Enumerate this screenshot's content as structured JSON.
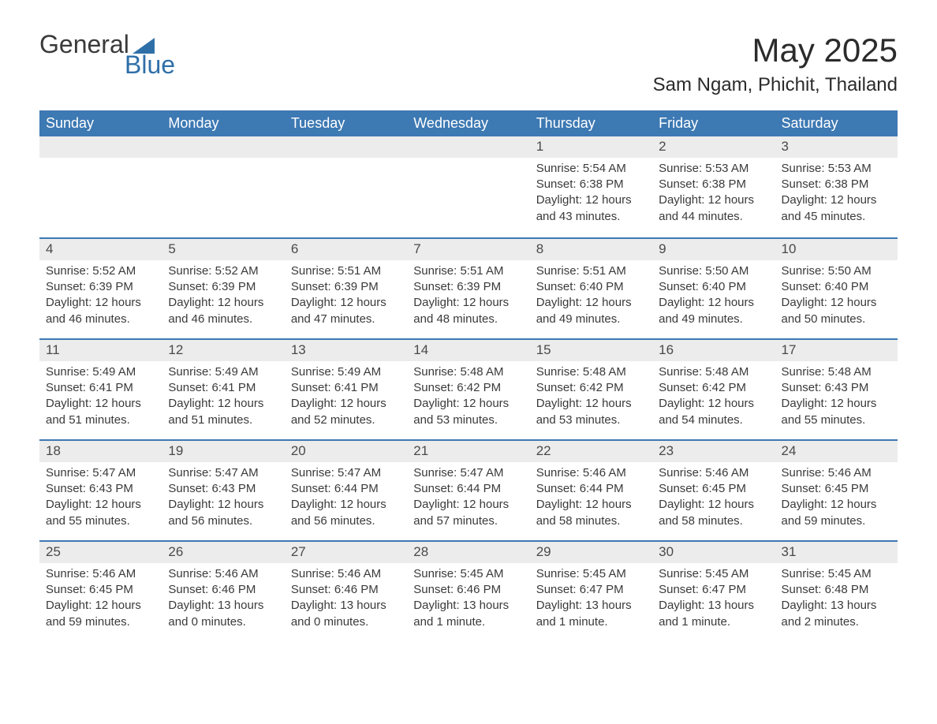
{
  "logo": {
    "word1": "General",
    "word2": "Blue"
  },
  "title": "May 2025",
  "location": "Sam Ngam, Phichit, Thailand",
  "colors": {
    "header_bg": "#3d79b3",
    "daynum_bg": "#ececec",
    "text": "#3a3a3a",
    "accent": "#2f6fa8",
    "page_bg": "#ffffff"
  },
  "day_names": [
    "Sunday",
    "Monday",
    "Tuesday",
    "Wednesday",
    "Thursday",
    "Friday",
    "Saturday"
  ],
  "weeks": [
    [
      {
        "blank": true
      },
      {
        "blank": true
      },
      {
        "blank": true
      },
      {
        "blank": true
      },
      {
        "n": "1",
        "sunrise": "5:54 AM",
        "sunset": "6:38 PM",
        "daylight": "12 hours and 43 minutes."
      },
      {
        "n": "2",
        "sunrise": "5:53 AM",
        "sunset": "6:38 PM",
        "daylight": "12 hours and 44 minutes."
      },
      {
        "n": "3",
        "sunrise": "5:53 AM",
        "sunset": "6:38 PM",
        "daylight": "12 hours and 45 minutes."
      }
    ],
    [
      {
        "n": "4",
        "sunrise": "5:52 AM",
        "sunset": "6:39 PM",
        "daylight": "12 hours and 46 minutes."
      },
      {
        "n": "5",
        "sunrise": "5:52 AM",
        "sunset": "6:39 PM",
        "daylight": "12 hours and 46 minutes."
      },
      {
        "n": "6",
        "sunrise": "5:51 AM",
        "sunset": "6:39 PM",
        "daylight": "12 hours and 47 minutes."
      },
      {
        "n": "7",
        "sunrise": "5:51 AM",
        "sunset": "6:39 PM",
        "daylight": "12 hours and 48 minutes."
      },
      {
        "n": "8",
        "sunrise": "5:51 AM",
        "sunset": "6:40 PM",
        "daylight": "12 hours and 49 minutes."
      },
      {
        "n": "9",
        "sunrise": "5:50 AM",
        "sunset": "6:40 PM",
        "daylight": "12 hours and 49 minutes."
      },
      {
        "n": "10",
        "sunrise": "5:50 AM",
        "sunset": "6:40 PM",
        "daylight": "12 hours and 50 minutes."
      }
    ],
    [
      {
        "n": "11",
        "sunrise": "5:49 AM",
        "sunset": "6:41 PM",
        "daylight": "12 hours and 51 minutes."
      },
      {
        "n": "12",
        "sunrise": "5:49 AM",
        "sunset": "6:41 PM",
        "daylight": "12 hours and 51 minutes."
      },
      {
        "n": "13",
        "sunrise": "5:49 AM",
        "sunset": "6:41 PM",
        "daylight": "12 hours and 52 minutes."
      },
      {
        "n": "14",
        "sunrise": "5:48 AM",
        "sunset": "6:42 PM",
        "daylight": "12 hours and 53 minutes."
      },
      {
        "n": "15",
        "sunrise": "5:48 AM",
        "sunset": "6:42 PM",
        "daylight": "12 hours and 53 minutes."
      },
      {
        "n": "16",
        "sunrise": "5:48 AM",
        "sunset": "6:42 PM",
        "daylight": "12 hours and 54 minutes."
      },
      {
        "n": "17",
        "sunrise": "5:48 AM",
        "sunset": "6:43 PM",
        "daylight": "12 hours and 55 minutes."
      }
    ],
    [
      {
        "n": "18",
        "sunrise": "5:47 AM",
        "sunset": "6:43 PM",
        "daylight": "12 hours and 55 minutes."
      },
      {
        "n": "19",
        "sunrise": "5:47 AM",
        "sunset": "6:43 PM",
        "daylight": "12 hours and 56 minutes."
      },
      {
        "n": "20",
        "sunrise": "5:47 AM",
        "sunset": "6:44 PM",
        "daylight": "12 hours and 56 minutes."
      },
      {
        "n": "21",
        "sunrise": "5:47 AM",
        "sunset": "6:44 PM",
        "daylight": "12 hours and 57 minutes."
      },
      {
        "n": "22",
        "sunrise": "5:46 AM",
        "sunset": "6:44 PM",
        "daylight": "12 hours and 58 minutes."
      },
      {
        "n": "23",
        "sunrise": "5:46 AM",
        "sunset": "6:45 PM",
        "daylight": "12 hours and 58 minutes."
      },
      {
        "n": "24",
        "sunrise": "5:46 AM",
        "sunset": "6:45 PM",
        "daylight": "12 hours and 59 minutes."
      }
    ],
    [
      {
        "n": "25",
        "sunrise": "5:46 AM",
        "sunset": "6:45 PM",
        "daylight": "12 hours and 59 minutes."
      },
      {
        "n": "26",
        "sunrise": "5:46 AM",
        "sunset": "6:46 PM",
        "daylight": "13 hours and 0 minutes."
      },
      {
        "n": "27",
        "sunrise": "5:46 AM",
        "sunset": "6:46 PM",
        "daylight": "13 hours and 0 minutes."
      },
      {
        "n": "28",
        "sunrise": "5:45 AM",
        "sunset": "6:46 PM",
        "daylight": "13 hours and 1 minute."
      },
      {
        "n": "29",
        "sunrise": "5:45 AM",
        "sunset": "6:47 PM",
        "daylight": "13 hours and 1 minute."
      },
      {
        "n": "30",
        "sunrise": "5:45 AM",
        "sunset": "6:47 PM",
        "daylight": "13 hours and 1 minute."
      },
      {
        "n": "31",
        "sunrise": "5:45 AM",
        "sunset": "6:48 PM",
        "daylight": "13 hours and 2 minutes."
      }
    ]
  ],
  "labels": {
    "sunrise": "Sunrise:",
    "sunset": "Sunset:",
    "daylight": "Daylight:"
  }
}
